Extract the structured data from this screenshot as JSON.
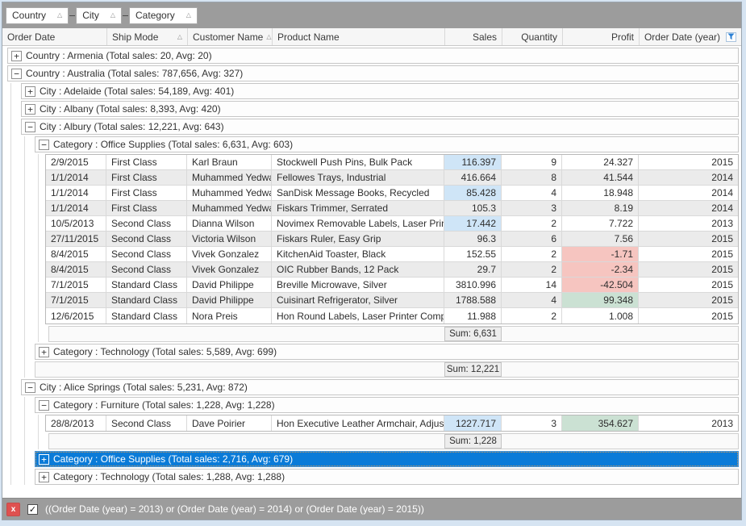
{
  "group_panel": {
    "fields": [
      {
        "label": "Country"
      },
      {
        "label": "City"
      },
      {
        "label": "Category"
      }
    ]
  },
  "columns": [
    {
      "label": "Order Date"
    },
    {
      "label": "Ship Mode",
      "sort": "asc"
    },
    {
      "label": "Customer Name",
      "sort": "asc"
    },
    {
      "label": "Product Name"
    },
    {
      "label": "Sales",
      "align": "right"
    },
    {
      "label": "Quantity",
      "align": "right"
    },
    {
      "label": "Profit",
      "align": "right"
    },
    {
      "label": "Order Date (year)",
      "align": "right",
      "filtered": true
    }
  ],
  "icons": {
    "expand": "+",
    "collapse": "−",
    "sort_asc": "△",
    "checkmark": "✓",
    "close": "x",
    "filter": "filter-funnel"
  },
  "rows": [
    {
      "type": "group",
      "level": 0,
      "expanded": false,
      "text": "Country : Armenia (Total sales: 20, Avg: 20)"
    },
    {
      "type": "group",
      "level": 0,
      "expanded": true,
      "text": "Country : Australia (Total sales: 787,656, Avg: 327)"
    },
    {
      "type": "group",
      "level": 1,
      "expanded": false,
      "text": "City : Adelaide (Total sales: 54,189, Avg: 401)"
    },
    {
      "type": "group",
      "level": 1,
      "expanded": false,
      "text": "City : Albany (Total sales: 8,393, Avg: 420)"
    },
    {
      "type": "group",
      "level": 1,
      "expanded": true,
      "text": "City : Albury (Total sales: 12,221, Avg: 643)"
    },
    {
      "type": "group",
      "level": 2,
      "expanded": true,
      "text": "Category : Office Supplies (Total sales: 6,631, Avg: 603)"
    },
    {
      "type": "data",
      "level": 3,
      "alt": false,
      "sales_hl": true,
      "profit_hl": null,
      "order_date": "2/9/2015",
      "ship_mode": "First Class",
      "customer": "Karl Braun",
      "product": "Stockwell Push Pins, Bulk Pack",
      "sales": "116.397",
      "quantity": "9",
      "profit": "24.327",
      "year": "2015"
    },
    {
      "type": "data",
      "level": 3,
      "alt": true,
      "sales_hl": false,
      "profit_hl": null,
      "order_date": "1/1/2014",
      "ship_mode": "First Class",
      "customer": "Muhammed Yedwab",
      "product": "Fellowes Trays, Industrial",
      "sales": "416.664",
      "quantity": "8",
      "profit": "41.544",
      "year": "2014"
    },
    {
      "type": "data",
      "level": 3,
      "alt": false,
      "sales_hl": true,
      "profit_hl": null,
      "order_date": "1/1/2014",
      "ship_mode": "First Class",
      "customer": "Muhammed Yedwab",
      "product": "SanDisk Message Books, Recycled",
      "sales": "85.428",
      "quantity": "4",
      "profit": "18.948",
      "year": "2014"
    },
    {
      "type": "data",
      "level": 3,
      "alt": true,
      "sales_hl": false,
      "profit_hl": null,
      "order_date": "1/1/2014",
      "ship_mode": "First Class",
      "customer": "Muhammed Yedwab",
      "product": "Fiskars Trimmer, Serrated",
      "sales": "105.3",
      "quantity": "3",
      "profit": "8.19",
      "year": "2014"
    },
    {
      "type": "data",
      "level": 3,
      "alt": false,
      "sales_hl": true,
      "profit_hl": null,
      "order_date": "10/5/2013",
      "ship_mode": "Second Class",
      "customer": "Dianna Wilson",
      "product": "Novimex Removable Labels, Laser Printer",
      "sales": "17.442",
      "quantity": "2",
      "profit": "7.722",
      "year": "2013"
    },
    {
      "type": "data",
      "level": 3,
      "alt": true,
      "sales_hl": false,
      "profit_hl": null,
      "order_date": "27/11/2015",
      "ship_mode": "Second Class",
      "customer": "Victoria Wilson",
      "product": "Fiskars Ruler, Easy Grip",
      "sales": "96.3",
      "quantity": "6",
      "profit": "7.56",
      "year": "2015"
    },
    {
      "type": "data",
      "level": 3,
      "alt": false,
      "sales_hl": false,
      "profit_hl": "neg",
      "order_date": "8/4/2015",
      "ship_mode": "Second Class",
      "customer": "Vivek Gonzalez",
      "product": "KitchenAid Toaster, Black",
      "sales": "152.55",
      "quantity": "2",
      "profit": "-1.71",
      "year": "2015"
    },
    {
      "type": "data",
      "level": 3,
      "alt": true,
      "sales_hl": false,
      "profit_hl": "neg",
      "order_date": "8/4/2015",
      "ship_mode": "Second Class",
      "customer": "Vivek Gonzalez",
      "product": "OIC Rubber Bands, 12 Pack",
      "sales": "29.7",
      "quantity": "2",
      "profit": "-2.34",
      "year": "2015"
    },
    {
      "type": "data",
      "level": 3,
      "alt": false,
      "sales_hl": false,
      "profit_hl": "neg",
      "order_date": "7/1/2015",
      "ship_mode": "Standard Class",
      "customer": "David Philippe",
      "product": "Breville Microwave, Silver",
      "sales": "3810.996",
      "quantity": "14",
      "profit": "-42.504",
      "year": "2015"
    },
    {
      "type": "data",
      "level": 3,
      "alt": true,
      "sales_hl": false,
      "profit_hl": "pos",
      "order_date": "7/1/2015",
      "ship_mode": "Standard Class",
      "customer": "David Philippe",
      "product": "Cuisinart Refrigerator, Silver",
      "sales": "1788.588",
      "quantity": "4",
      "profit": "99.348",
      "year": "2015"
    },
    {
      "type": "data",
      "level": 3,
      "alt": false,
      "sales_hl": false,
      "profit_hl": null,
      "order_date": "12/6/2015",
      "ship_mode": "Standard Class",
      "customer": "Nora Preis",
      "product": "Hon Round Labels, Laser Printer Compa",
      "sales": "11.988",
      "quantity": "2",
      "profit": "1.008",
      "year": "2015"
    },
    {
      "type": "footer",
      "level": 3,
      "sum": "Sum: 6,631"
    },
    {
      "type": "group",
      "level": 2,
      "expanded": false,
      "text": "Category : Technology (Total sales: 5,589, Avg: 699)"
    },
    {
      "type": "footer",
      "level": 2,
      "sum": "Sum: 12,221"
    },
    {
      "type": "group",
      "level": 1,
      "expanded": true,
      "text": "City : Alice Springs (Total sales: 5,231, Avg: 872)"
    },
    {
      "type": "group",
      "level": 2,
      "expanded": true,
      "text": "Category : Furniture (Total sales: 1,228, Avg: 1,228)"
    },
    {
      "type": "data",
      "level": 3,
      "alt": false,
      "sales_hl": true,
      "profit_hl": "pos",
      "order_date": "28/8/2013",
      "ship_mode": "Second Class",
      "customer": "Dave Poirier",
      "product": "Hon Executive Leather Armchair, Adjus",
      "sales": "1227.717",
      "quantity": "3",
      "profit": "354.627",
      "year": "2013"
    },
    {
      "type": "footer",
      "level": 3,
      "sum": "Sum: 1,228"
    },
    {
      "type": "group",
      "level": 2,
      "expanded": false,
      "selected": true,
      "text": "Category : Office Supplies (Total sales: 2,716, Avg: 679)"
    },
    {
      "type": "group",
      "level": 2,
      "expanded": false,
      "text": "Category : Technology (Total sales: 1,288, Avg: 1,288)"
    }
  ],
  "filter_bar": {
    "enabled": true,
    "expression": "((Order Date (year) = 2013) or (Order Date (year) = 2014) or (Order Date (year) = 2015))"
  },
  "colors": {
    "selection": "#0a7bd8",
    "sales_highlight": "#cfe5f7",
    "profit_negative": "#f6c5c0",
    "profit_positive": "#cbe1d3",
    "panel_gray": "#9c9c9c",
    "close_button_red": "#df5150",
    "filter_icon_blue": "#2a7fd4"
  }
}
